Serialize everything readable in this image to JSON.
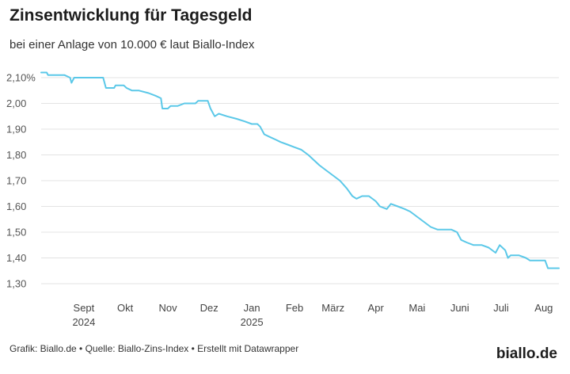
{
  "header": {
    "title": "Zinsentwicklung für Tagesgeld",
    "subtitle": "bei einer Anlage von 10.000 € laut Biallo-Index"
  },
  "footer": {
    "credit": "Grafik: Biallo.de • Quelle: Biallo-Zins-Index • Erstellt mit Datawrapper",
    "logo": "biallo.de"
  },
  "colors": {
    "line": "#5bc8e8",
    "grid": "#e3e3e3"
  },
  "chart_data": {
    "type": "line",
    "title": "Zinsentwicklung für Tagesgeld",
    "subtitle": "bei einer Anlage von 10.000 € laut Biallo-Index",
    "ylim": [
      1.3,
      2.1
    ],
    "yticks": [
      1.3,
      1.4,
      1.5,
      1.6,
      1.7,
      1.8,
      1.9,
      2.0,
      2.1
    ],
    "ytick_labels": [
      "1,30",
      "1,40",
      "1,50",
      "1,60",
      "1,70",
      "1,80",
      "1,90",
      "2,00",
      "2,10%"
    ],
    "xlim": [
      "2024-08-15",
      "2025-08-26"
    ],
    "xticks": [
      {
        "date": "2024-09-15",
        "label": "Sept",
        "year": "2024"
      },
      {
        "date": "2024-10-15",
        "label": "Okt",
        "year": ""
      },
      {
        "date": "2024-11-15",
        "label": "Nov",
        "year": ""
      },
      {
        "date": "2024-12-15",
        "label": "Dez",
        "year": ""
      },
      {
        "date": "2025-01-15",
        "label": "Jan",
        "year": "2025"
      },
      {
        "date": "2025-02-15",
        "label": "Feb",
        "year": ""
      },
      {
        "date": "2025-03-15",
        "label": "März",
        "year": ""
      },
      {
        "date": "2025-04-15",
        "label": "Apr",
        "year": ""
      },
      {
        "date": "2025-05-15",
        "label": "Mai",
        "year": ""
      },
      {
        "date": "2025-06-15",
        "label": "Juni",
        "year": ""
      },
      {
        "date": "2025-07-15",
        "label": "Juli",
        "year": ""
      },
      {
        "date": "2025-08-15",
        "label": "Aug",
        "year": ""
      }
    ],
    "grid": true,
    "series": [
      {
        "points": [
          [
            "2024-08-15",
            2.12
          ],
          [
            "2024-08-19",
            2.12
          ],
          [
            "2024-08-20",
            2.11
          ],
          [
            "2024-08-25",
            2.11
          ],
          [
            "2024-09-01",
            2.11
          ],
          [
            "2024-09-05",
            2.1
          ],
          [
            "2024-09-06",
            2.08
          ],
          [
            "2024-09-08",
            2.1
          ],
          [
            "2024-09-20",
            2.1
          ],
          [
            "2024-09-29",
            2.1
          ],
          [
            "2024-10-01",
            2.06
          ],
          [
            "2024-10-07",
            2.06
          ],
          [
            "2024-10-08",
            2.07
          ],
          [
            "2024-10-14",
            2.07
          ],
          [
            "2024-10-16",
            2.06
          ],
          [
            "2024-10-20",
            2.05
          ],
          [
            "2024-10-25",
            2.05
          ],
          [
            "2024-11-01",
            2.04
          ],
          [
            "2024-11-06",
            2.03
          ],
          [
            "2024-11-10",
            2.02
          ],
          [
            "2024-11-11",
            1.98
          ],
          [
            "2024-11-15",
            1.98
          ],
          [
            "2024-11-17",
            1.99
          ],
          [
            "2024-11-22",
            1.99
          ],
          [
            "2024-11-27",
            2.0
          ],
          [
            "2024-12-05",
            2.0
          ],
          [
            "2024-12-07",
            2.01
          ],
          [
            "2024-12-14",
            2.01
          ],
          [
            "2024-12-16",
            1.98
          ],
          [
            "2024-12-19",
            1.95
          ],
          [
            "2024-12-22",
            1.96
          ],
          [
            "2024-12-28",
            1.95
          ],
          [
            "2025-01-04",
            1.94
          ],
          [
            "2025-01-10",
            1.93
          ],
          [
            "2025-01-15",
            1.92
          ],
          [
            "2025-01-19",
            1.92
          ],
          [
            "2025-01-21",
            1.91
          ],
          [
            "2025-01-24",
            1.88
          ],
          [
            "2025-01-28",
            1.87
          ],
          [
            "2025-02-01",
            1.86
          ],
          [
            "2025-02-05",
            1.85
          ],
          [
            "2025-02-10",
            1.84
          ],
          [
            "2025-02-15",
            1.83
          ],
          [
            "2025-02-20",
            1.82
          ],
          [
            "2025-02-25",
            1.8
          ],
          [
            "2025-03-01",
            1.78
          ],
          [
            "2025-03-05",
            1.76
          ],
          [
            "2025-03-10",
            1.74
          ],
          [
            "2025-03-15",
            1.72
          ],
          [
            "2025-03-20",
            1.7
          ],
          [
            "2025-03-25",
            1.67
          ],
          [
            "2025-03-29",
            1.64
          ],
          [
            "2025-04-01",
            1.63
          ],
          [
            "2025-04-05",
            1.64
          ],
          [
            "2025-04-10",
            1.64
          ],
          [
            "2025-04-15",
            1.62
          ],
          [
            "2025-04-18",
            1.6
          ],
          [
            "2025-04-23",
            1.59
          ],
          [
            "2025-04-26",
            1.61
          ],
          [
            "2025-05-01",
            1.6
          ],
          [
            "2025-05-06",
            1.59
          ],
          [
            "2025-05-10",
            1.58
          ],
          [
            "2025-05-15",
            1.56
          ],
          [
            "2025-05-20",
            1.54
          ],
          [
            "2025-05-25",
            1.52
          ],
          [
            "2025-05-30",
            1.51
          ],
          [
            "2025-06-04",
            1.51
          ],
          [
            "2025-06-09",
            1.51
          ],
          [
            "2025-06-13",
            1.5
          ],
          [
            "2025-06-16",
            1.47
          ],
          [
            "2025-06-20",
            1.46
          ],
          [
            "2025-06-25",
            1.45
          ],
          [
            "2025-07-01",
            1.45
          ],
          [
            "2025-07-06",
            1.44
          ],
          [
            "2025-07-11",
            1.42
          ],
          [
            "2025-07-14",
            1.45
          ],
          [
            "2025-07-18",
            1.43
          ],
          [
            "2025-07-20",
            1.4
          ],
          [
            "2025-07-22",
            1.41
          ],
          [
            "2025-07-28",
            1.41
          ],
          [
            "2025-08-02",
            1.4
          ],
          [
            "2025-08-05",
            1.39
          ],
          [
            "2025-08-11",
            1.39
          ],
          [
            "2025-08-16",
            1.39
          ],
          [
            "2025-08-18",
            1.36
          ],
          [
            "2025-08-26",
            1.36
          ]
        ]
      }
    ]
  }
}
